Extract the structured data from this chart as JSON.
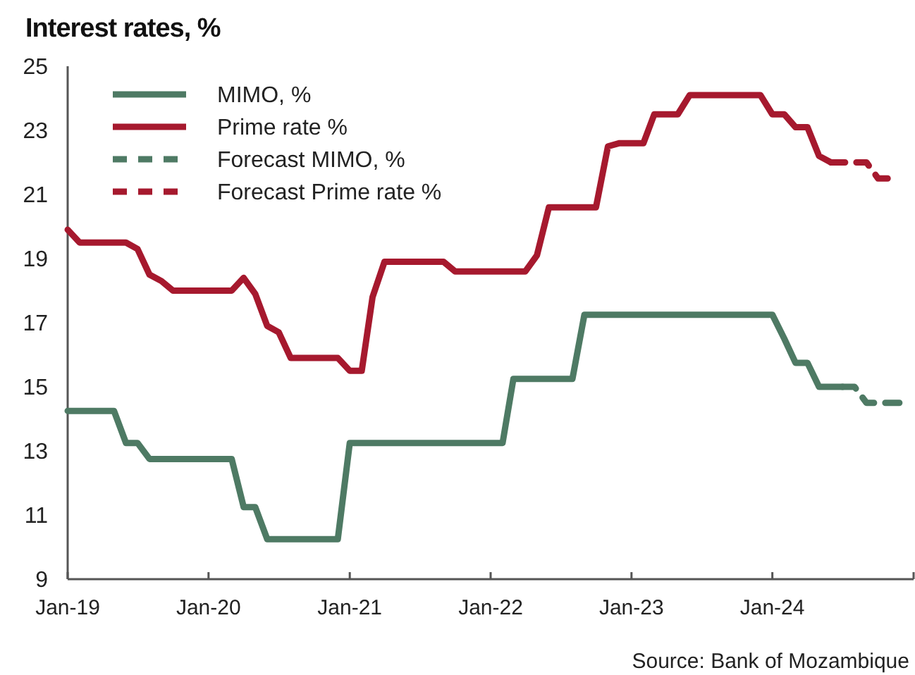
{
  "chart_data": {
    "type": "line",
    "title": "Interest rates, %",
    "annotations": [
      "Source: Bank of Mozambique"
    ],
    "xlim": [
      "2019-01",
      "2025-01"
    ],
    "xticks": [
      {
        "value": "2019-01",
        "label": "Jan-19"
      },
      {
        "value": "2020-01",
        "label": "Jan-20"
      },
      {
        "value": "2021-01",
        "label": "Jan-21"
      },
      {
        "value": "2022-01",
        "label": "Jan-22"
      },
      {
        "value": "2023-01",
        "label": "Jan-23"
      },
      {
        "value": "2024-01",
        "label": "Jan-24"
      },
      {
        "value": "2025-01",
        "label": null
      }
    ],
    "ylim": [
      9,
      25
    ],
    "yticks": [
      9,
      11,
      13,
      15,
      17,
      19,
      21,
      23,
      25
    ],
    "grid": false,
    "legend": "top left",
    "marker": "none",
    "series": [
      {
        "name": "MIMO, %",
        "color": "#4e7a64",
        "line_style": "solid",
        "x": [
          "2019-01",
          "2019-02",
          "2019-03",
          "2019-04",
          "2019-05",
          "2019-06",
          "2019-07",
          "2019-08",
          "2019-09",
          "2019-10",
          "2019-11",
          "2019-12",
          "2020-01",
          "2020-02",
          "2020-03",
          "2020-04",
          "2020-05",
          "2020-06",
          "2020-07",
          "2020-08",
          "2020-09",
          "2020-10",
          "2020-11",
          "2020-12",
          "2021-01",
          "2021-02",
          "2021-03",
          "2021-04",
          "2021-05",
          "2021-06",
          "2021-07",
          "2021-08",
          "2021-09",
          "2021-10",
          "2021-11",
          "2021-12",
          "2022-01",
          "2022-02",
          "2022-03",
          "2022-04",
          "2022-05",
          "2022-06",
          "2022-07",
          "2022-08",
          "2022-09",
          "2022-10",
          "2022-11",
          "2022-12",
          "2023-01",
          "2023-02",
          "2023-03",
          "2023-04",
          "2023-05",
          "2023-06",
          "2023-07",
          "2023-08",
          "2023-09",
          "2023-10",
          "2023-11",
          "2023-12",
          "2024-01",
          "2024-02",
          "2024-03",
          "2024-04",
          "2024-05",
          "2024-06",
          "2024-07"
        ],
        "values": [
          14.25,
          14.25,
          14.25,
          14.25,
          14.25,
          13.25,
          13.25,
          12.75,
          12.75,
          12.75,
          12.75,
          12.75,
          12.75,
          12.75,
          12.75,
          11.25,
          11.25,
          10.25,
          10.25,
          10.25,
          10.25,
          10.25,
          10.25,
          10.25,
          13.25,
          13.25,
          13.25,
          13.25,
          13.25,
          13.25,
          13.25,
          13.25,
          13.25,
          13.25,
          13.25,
          13.25,
          13.25,
          13.25,
          15.25,
          15.25,
          15.25,
          15.25,
          15.25,
          15.25,
          17.25,
          17.25,
          17.25,
          17.25,
          17.25,
          17.25,
          17.25,
          17.25,
          17.25,
          17.25,
          17.25,
          17.25,
          17.25,
          17.25,
          17.25,
          17.25,
          17.25,
          16.5,
          15.75,
          15.75,
          15.0,
          15.0,
          15.0
        ]
      },
      {
        "name": "Prime rate %",
        "color": "#a6192e",
        "line_style": "solid",
        "x": [
          "2019-01",
          "2019-02",
          "2019-03",
          "2019-04",
          "2019-05",
          "2019-06",
          "2019-07",
          "2019-08",
          "2019-09",
          "2019-10",
          "2019-11",
          "2019-12",
          "2020-01",
          "2020-02",
          "2020-03",
          "2020-04",
          "2020-05",
          "2020-06",
          "2020-07",
          "2020-08",
          "2020-09",
          "2020-10",
          "2020-11",
          "2020-12",
          "2021-01",
          "2021-02",
          "2021-03",
          "2021-04",
          "2021-05",
          "2021-06",
          "2021-07",
          "2021-08",
          "2021-09",
          "2021-10",
          "2021-11",
          "2021-12",
          "2022-01",
          "2022-02",
          "2022-03",
          "2022-04",
          "2022-05",
          "2022-06",
          "2022-07",
          "2022-08",
          "2022-09",
          "2022-10",
          "2022-11",
          "2022-12",
          "2023-01",
          "2023-02",
          "2023-03",
          "2023-04",
          "2023-05",
          "2023-06",
          "2023-07",
          "2023-08",
          "2023-09",
          "2023-10",
          "2023-11",
          "2023-12",
          "2024-01",
          "2024-02",
          "2024-03",
          "2024-04",
          "2024-05",
          "2024-06"
        ],
        "values": [
          19.9,
          19.5,
          19.5,
          19.5,
          19.5,
          19.5,
          19.3,
          18.5,
          18.3,
          18.0,
          18.0,
          18.0,
          18.0,
          18.0,
          18.0,
          18.4,
          17.9,
          16.9,
          16.7,
          15.9,
          15.9,
          15.9,
          15.9,
          15.9,
          15.5,
          15.5,
          17.8,
          18.9,
          18.9,
          18.9,
          18.9,
          18.9,
          18.9,
          18.6,
          18.6,
          18.6,
          18.6,
          18.6,
          18.6,
          18.6,
          19.1,
          20.6,
          20.6,
          20.6,
          20.6,
          20.6,
          22.5,
          22.6,
          22.6,
          22.6,
          23.5,
          23.5,
          23.5,
          24.1,
          24.1,
          24.1,
          24.1,
          24.1,
          24.1,
          24.1,
          23.5,
          23.5,
          23.1,
          23.1,
          22.2,
          22.0
        ]
      },
      {
        "name": "Forecast MIMO, %",
        "color": "#4e7a64",
        "line_style": "dashed",
        "x": [
          "2024-07",
          "2024-08",
          "2024-09",
          "2024-10",
          "2024-11",
          "2024-12"
        ],
        "values": [
          15.0,
          15.0,
          14.5,
          14.5,
          14.5,
          14.5
        ]
      },
      {
        "name": "Forecast Prime rate %",
        "color": "#a6192e",
        "line_style": "dashed",
        "x": [
          "2024-06",
          "2024-07",
          "2024-08",
          "2024-09",
          "2024-10",
          "2024-11"
        ],
        "values": [
          22.0,
          22.0,
          22.0,
          22.0,
          21.5,
          21.5
        ]
      }
    ]
  }
}
